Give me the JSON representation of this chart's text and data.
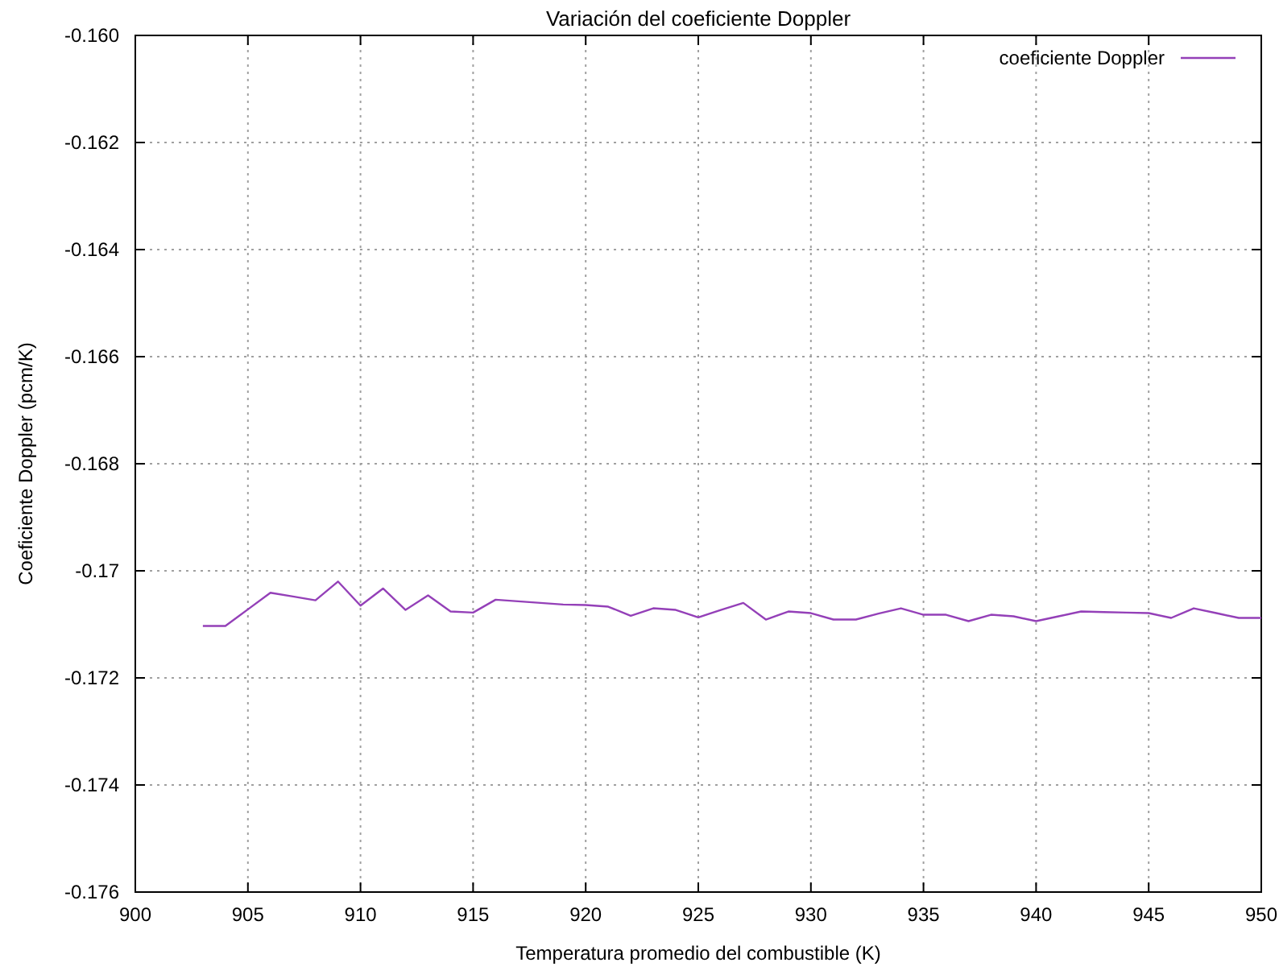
{
  "chart_data": {
    "type": "line",
    "title": "Variación del coeficiente Doppler",
    "xlabel": "Temperatura promedio del combustible (K)",
    "ylabel": "Coeficiente Doppler (pcm/K)",
    "x": [
      903,
      904,
      905,
      906,
      907,
      908,
      909,
      910,
      911,
      912,
      913,
      914,
      915,
      916,
      917,
      918,
      919,
      920,
      921,
      922,
      923,
      924,
      925,
      926,
      927,
      928,
      929,
      930,
      931,
      932,
      933,
      934,
      935,
      936,
      937,
      938,
      939,
      940,
      941,
      942,
      943,
      944,
      945,
      946,
      947,
      948,
      949,
      950
    ],
    "series": [
      {
        "name": "coeficiente Doppler",
        "color": "#9440b8",
        "values": [
          -0.17103,
          -0.17103,
          -0.17072,
          -0.17041,
          -0.17048,
          -0.17055,
          -0.1702,
          -0.17065,
          -0.17033,
          -0.17073,
          -0.17046,
          -0.17076,
          -0.17078,
          -0.17054,
          -0.17057,
          -0.1706,
          -0.17063,
          -0.17064,
          -0.17067,
          -0.17084,
          -0.1707,
          -0.17073,
          -0.17087,
          -0.17073,
          -0.1706,
          -0.17091,
          -0.17076,
          -0.17079,
          -0.17091,
          -0.17091,
          -0.1708,
          -0.1707,
          -0.17082,
          -0.17082,
          -0.17094,
          -0.17082,
          -0.17085,
          -0.17094,
          -0.17085,
          -0.17076,
          -0.17077,
          -0.17078,
          -0.17079,
          -0.17088,
          -0.1707,
          -0.17079,
          -0.17088,
          -0.17088
        ]
      }
    ],
    "xlim": [
      900,
      950
    ],
    "xticks": [
      900,
      905,
      910,
      915,
      920,
      925,
      930,
      935,
      940,
      945,
      950
    ],
    "ylim": [
      -0.176,
      -0.16
    ],
    "yticks": [
      {
        "value": -0.176,
        "label": "-0.176"
      },
      {
        "value": -0.174,
        "label": "-0.174"
      },
      {
        "value": -0.172,
        "label": "-0.172"
      },
      {
        "value": -0.17,
        "label": "-0.17"
      },
      {
        "value": -0.168,
        "label": "-0.168"
      },
      {
        "value": -0.166,
        "label": "-0.166"
      },
      {
        "value": -0.164,
        "label": "-0.164"
      },
      {
        "value": -0.162,
        "label": "-0.162"
      },
      {
        "value": -0.16,
        "label": "-0.160"
      }
    ],
    "grid": true,
    "legend": "top right"
  }
}
